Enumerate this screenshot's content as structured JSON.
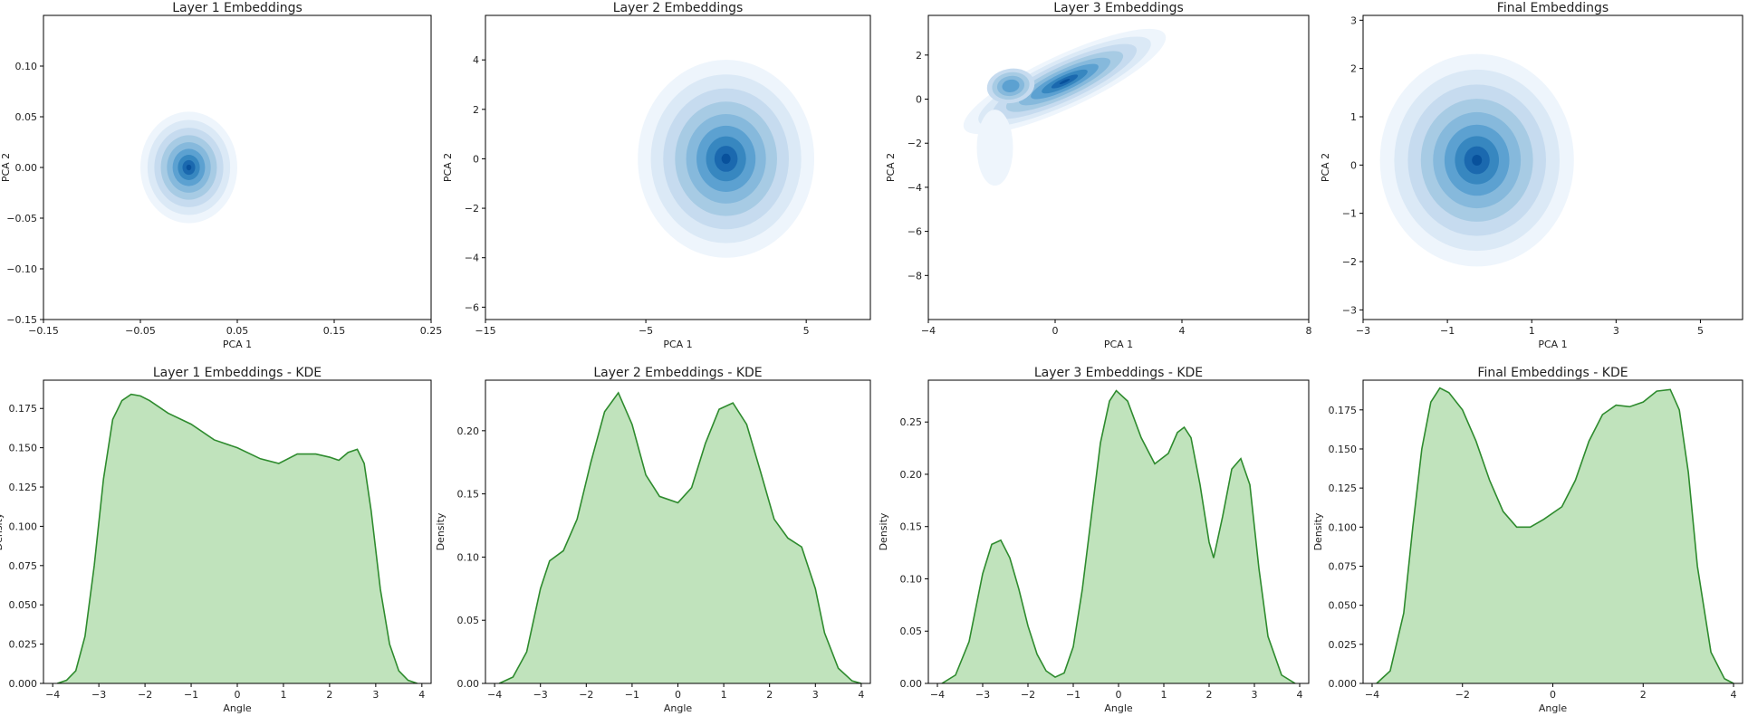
{
  "figure": {
    "rows": 2,
    "cols": 4
  },
  "colors": {
    "contour_levels": [
      "#eef5fc",
      "#dbe9f6",
      "#c6dbef",
      "#a7cbe4",
      "#86b9dc",
      "#5ca1d1",
      "#3787c0",
      "#1b69af",
      "#08519c"
    ],
    "kde_fill": "#c0e3bc",
    "kde_line": "#2e8b2e",
    "axis": "#000000"
  },
  "chart_data": [
    {
      "type": "contour",
      "title": "Layer 1 Embeddings",
      "xlabel": "PCA 1",
      "ylabel": "PCA 2",
      "xlim": [
        -0.15,
        0.25
      ],
      "ylim": [
        -0.15,
        0.15
      ],
      "xticks": [
        -0.15,
        -0.05,
        0.05,
        0.15,
        0.25
      ],
      "xtick_labels": [
        "−0.15",
        "−0.05",
        "0.05",
        "0.15",
        "0.25"
      ],
      "yticks": [
        -0.15,
        -0.1,
        -0.05,
        0.0,
        0.05,
        0.1
      ],
      "ytick_labels": [
        "−0.15",
        "−0.10",
        "−0.05",
        "0.00",
        "0.05",
        "0.10"
      ],
      "center": [
        0.0,
        0.0
      ],
      "spread": [
        0.05,
        0.055
      ],
      "angle_deg": 0,
      "density_shape": "single peak"
    },
    {
      "type": "contour",
      "title": "Layer 2 Embeddings",
      "xlabel": "PCA 1",
      "ylabel": "PCA 2",
      "xlim": [
        -15,
        9
      ],
      "ylim": [
        -6.5,
        5.8
      ],
      "xticks": [
        -15,
        -5,
        5
      ],
      "xtick_labels": [
        "−15",
        "−5",
        "5"
      ],
      "yticks": [
        -6,
        -4,
        -2,
        0,
        2,
        4
      ],
      "ytick_labels": [
        "−6",
        "−4",
        "−2",
        "0",
        "2",
        "4"
      ],
      "center": [
        0.0,
        0.0
      ],
      "spread": [
        5.5,
        4.0
      ],
      "angle_deg": 0,
      "density_shape": "elongated vertical peak"
    },
    {
      "type": "contour",
      "title": "Layer 3 Embeddings",
      "xlabel": "PCA 1",
      "ylabel": "PCA 2",
      "xlim": [
        -4,
        8
      ],
      "ylim": [
        -10,
        3.8
      ],
      "xticks": [
        -4,
        0,
        4,
        8
      ],
      "xtick_labels": [
        "−4",
        "0",
        "4",
        "8"
      ],
      "yticks": [
        -8,
        -6,
        -4,
        -2,
        0,
        2
      ],
      "ytick_labels": [
        "−8",
        "−6",
        "−4",
        "−2",
        "0",
        "2"
      ],
      "center": [
        0.3,
        0.8
      ],
      "spread": [
        3.5,
        1.2
      ],
      "angle_deg": -25,
      "density_shape": "curved arc with secondary peak near (-1.4, 0.8)"
    },
    {
      "type": "contour",
      "title": "Final Embeddings",
      "xlabel": "PCA 1",
      "ylabel": "PCA 2",
      "xlim": [
        -3,
        6
      ],
      "ylim": [
        -3.2,
        3.1
      ],
      "xticks": [
        -3,
        -1,
        1,
        3,
        5
      ],
      "xtick_labels": [
        "−3",
        "−1",
        "1",
        "3",
        "5"
      ],
      "yticks": [
        -3,
        -2,
        -1,
        0,
        1,
        2,
        3
      ],
      "ytick_labels": [
        "−3",
        "−2",
        "−1",
        "0",
        "1",
        "2",
        "3"
      ],
      "center": [
        -0.3,
        0.1
      ],
      "spread": [
        2.3,
        2.2
      ],
      "angle_deg": 0,
      "density_shape": "single peak"
    },
    {
      "type": "area",
      "title": "Layer 1 Embeddings - KDE",
      "xlabel": "Angle",
      "ylabel": "Density",
      "xlim": [
        -4.2,
        4.2
      ],
      "ylim": [
        0,
        0.193
      ],
      "xticks": [
        -4,
        -3,
        -2,
        -1,
        0,
        1,
        2,
        3,
        4
      ],
      "xtick_labels": [
        "−4",
        "−3",
        "−2",
        "−1",
        "0",
        "1",
        "2",
        "3",
        "4"
      ],
      "yticks": [
        0,
        0.025,
        0.05,
        0.075,
        0.1,
        0.125,
        0.15,
        0.175
      ],
      "ytick_labels": [
        "0.000",
        "0.025",
        "0.050",
        "0.075",
        "0.100",
        "0.125",
        "0.150",
        "0.175"
      ],
      "x": [
        -3.9,
        -3.7,
        -3.5,
        -3.3,
        -3.1,
        -2.9,
        -2.7,
        -2.5,
        -2.3,
        -2.1,
        -1.9,
        -1.5,
        -1.0,
        -0.5,
        0.0,
        0.5,
        0.9,
        1.3,
        1.7,
        2.0,
        2.2,
        2.4,
        2.6,
        2.75,
        2.9,
        3.1,
        3.3,
        3.5,
        3.7,
        3.9
      ],
      "y": [
        0.0,
        0.002,
        0.008,
        0.03,
        0.075,
        0.13,
        0.168,
        0.18,
        0.184,
        0.183,
        0.18,
        0.172,
        0.165,
        0.155,
        0.15,
        0.143,
        0.14,
        0.146,
        0.146,
        0.144,
        0.142,
        0.147,
        0.149,
        0.14,
        0.11,
        0.06,
        0.025,
        0.008,
        0.002,
        0.0
      ]
    },
    {
      "type": "area",
      "title": "Layer 2 Embeddings - KDE",
      "xlabel": "Angle",
      "ylabel": "Density",
      "xlim": [
        -4.2,
        4.2
      ],
      "ylim": [
        0,
        0.24
      ],
      "xticks": [
        -4,
        -3,
        -2,
        -1,
        0,
        1,
        2,
        3,
        4
      ],
      "xtick_labels": [
        "−4",
        "−3",
        "−2",
        "−1",
        "0",
        "1",
        "2",
        "3",
        "4"
      ],
      "yticks": [
        0,
        0.05,
        0.1,
        0.15,
        0.2
      ],
      "ytick_labels": [
        "0.00",
        "0.05",
        "0.10",
        "0.15",
        "0.20"
      ],
      "x": [
        -3.9,
        -3.6,
        -3.3,
        -3.0,
        -2.8,
        -2.5,
        -2.2,
        -1.9,
        -1.6,
        -1.3,
        -1.0,
        -0.7,
        -0.4,
        0.0,
        0.3,
        0.6,
        0.9,
        1.2,
        1.5,
        1.8,
        2.1,
        2.4,
        2.7,
        3.0,
        3.2,
        3.5,
        3.8,
        4.0
      ],
      "y": [
        0.0,
        0.005,
        0.025,
        0.075,
        0.097,
        0.105,
        0.13,
        0.175,
        0.215,
        0.23,
        0.205,
        0.165,
        0.148,
        0.143,
        0.155,
        0.19,
        0.217,
        0.222,
        0.205,
        0.168,
        0.13,
        0.115,
        0.108,
        0.075,
        0.04,
        0.012,
        0.002,
        0.0
      ]
    },
    {
      "type": "area",
      "title": "Layer 3 Embeddings - KDE",
      "xlabel": "Angle",
      "ylabel": "Density",
      "xlim": [
        -4.2,
        4.2
      ],
      "ylim": [
        0,
        0.29
      ],
      "xticks": [
        -4,
        -3,
        -2,
        -1,
        0,
        1,
        2,
        3,
        4
      ],
      "xtick_labels": [
        "−4",
        "−3",
        "−2",
        "−1",
        "0",
        "1",
        "2",
        "3",
        "4"
      ],
      "yticks": [
        0,
        0.05,
        0.1,
        0.15,
        0.2,
        0.25
      ],
      "ytick_labels": [
        "0.00",
        "0.05",
        "0.10",
        "0.15",
        "0.20",
        "0.25"
      ],
      "x": [
        -3.9,
        -3.6,
        -3.3,
        -3.0,
        -2.8,
        -2.6,
        -2.4,
        -2.2,
        -2.0,
        -1.8,
        -1.6,
        -1.4,
        -1.2,
        -1.0,
        -0.8,
        -0.6,
        -0.4,
        -0.2,
        -0.05,
        0.2,
        0.5,
        0.8,
        1.1,
        1.3,
        1.45,
        1.6,
        1.8,
        2.0,
        2.1,
        2.3,
        2.5,
        2.7,
        2.9,
        3.1,
        3.3,
        3.6,
        3.9
      ],
      "y": [
        0.0,
        0.008,
        0.04,
        0.105,
        0.133,
        0.137,
        0.12,
        0.09,
        0.055,
        0.028,
        0.012,
        0.006,
        0.01,
        0.035,
        0.09,
        0.16,
        0.23,
        0.27,
        0.28,
        0.27,
        0.235,
        0.21,
        0.22,
        0.24,
        0.245,
        0.235,
        0.19,
        0.135,
        0.12,
        0.16,
        0.205,
        0.215,
        0.19,
        0.11,
        0.045,
        0.008,
        0.0
      ]
    },
    {
      "type": "area",
      "title": "Final Embeddings - KDE",
      "xlabel": "Angle",
      "ylabel": "Density",
      "xlim": [
        -4.2,
        4.2
      ],
      "ylim": [
        0,
        0.194
      ],
      "xticks": [
        -4,
        -2,
        0,
        2,
        4
      ],
      "xtick_labels": [
        "−4",
        "−2",
        "0",
        "2",
        "4"
      ],
      "yticks": [
        0,
        0.025,
        0.05,
        0.075,
        0.1,
        0.125,
        0.15,
        0.175
      ],
      "ytick_labels": [
        "0.000",
        "0.025",
        "0.050",
        "0.075",
        "0.100",
        "0.125",
        "0.150",
        "0.175"
      ],
      "x": [
        -3.9,
        -3.6,
        -3.3,
        -3.1,
        -2.9,
        -2.7,
        -2.5,
        -2.3,
        -2.0,
        -1.7,
        -1.4,
        -1.1,
        -0.8,
        -0.5,
        -0.2,
        0.2,
        0.5,
        0.8,
        1.1,
        1.4,
        1.7,
        2.0,
        2.3,
        2.6,
        2.8,
        3.0,
        3.2,
        3.5,
        3.8,
        4.0
      ],
      "y": [
        0.0,
        0.008,
        0.045,
        0.1,
        0.15,
        0.18,
        0.189,
        0.186,
        0.175,
        0.155,
        0.13,
        0.11,
        0.1,
        0.1,
        0.105,
        0.113,
        0.13,
        0.155,
        0.172,
        0.178,
        0.177,
        0.18,
        0.187,
        0.188,
        0.175,
        0.135,
        0.075,
        0.02,
        0.003,
        0.0
      ]
    }
  ]
}
